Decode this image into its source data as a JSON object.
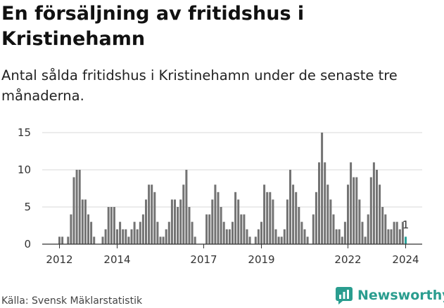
{
  "header": {
    "title": "En försäljning av fritidshus i Kristinehamn",
    "subtitle": "Antal sålda fritidshus i Kristinehamn under de senaste tre månaderna."
  },
  "footer": {
    "source": "Källa: Svensk Mäklarstatistik",
    "brand": "Newsworthy"
  },
  "colors": {
    "bar": "#737373",
    "highlight": "#2aa39a",
    "brand": "#2a9d8f"
  },
  "chart_data": {
    "type": "bar",
    "title": "",
    "xlabel": "",
    "ylabel": "",
    "ylim": [
      0,
      15
    ],
    "yticks": [
      0,
      5,
      10,
      15
    ],
    "xtick_labels": [
      "2012",
      "2014",
      "2017",
      "2019",
      "2022",
      "2024"
    ],
    "xtick_index": [
      0,
      20,
      50,
      70,
      100,
      120
    ],
    "start_label": "2012-01",
    "grid": true,
    "annotation": {
      "text": "1",
      "index": 120
    },
    "values": [
      1,
      1,
      0,
      1,
      4,
      9,
      10,
      10,
      6,
      6,
      4,
      3,
      1,
      0,
      0,
      1,
      2,
      5,
      5,
      5,
      2,
      3,
      2,
      2,
      1,
      2,
      3,
      2,
      3,
      4,
      6,
      8,
      8,
      7,
      3,
      1,
      1,
      2,
      3,
      6,
      6,
      5,
      6,
      8,
      10,
      5,
      3,
      1,
      0,
      0,
      0,
      4,
      4,
      6,
      8,
      7,
      5,
      3,
      2,
      2,
      3,
      7,
      6,
      4,
      4,
      2,
      1,
      0,
      1,
      2,
      3,
      8,
      7,
      7,
      6,
      2,
      1,
      1,
      2,
      6,
      10,
      8,
      7,
      5,
      3,
      2,
      1,
      0,
      4,
      7,
      11,
      15,
      11,
      8,
      6,
      4,
      2,
      2,
      1,
      3,
      8,
      11,
      9,
      9,
      6,
      3,
      1,
      4,
      9,
      11,
      10,
      8,
      5,
      4,
      2,
      2,
      3,
      3,
      2,
      3,
      1
    ],
    "highlight_index": 120
  }
}
